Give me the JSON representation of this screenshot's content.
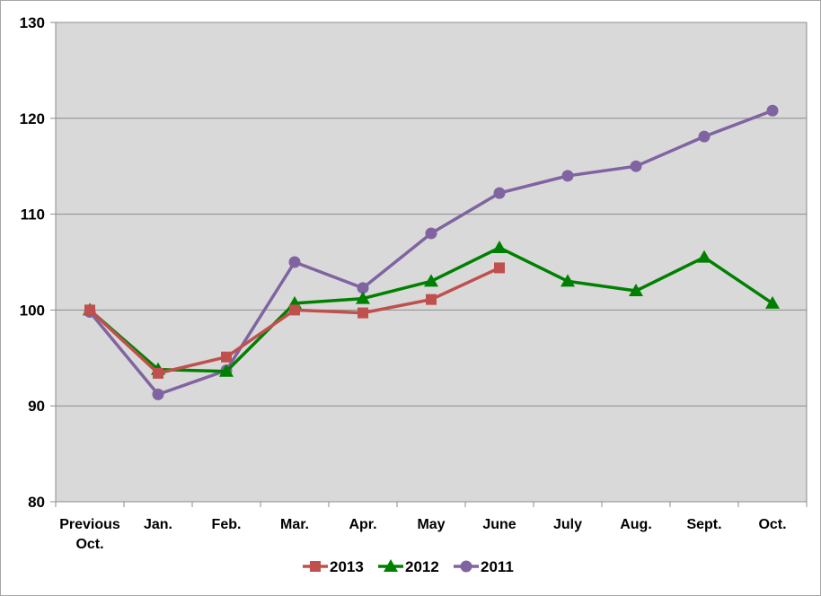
{
  "chart_data": {
    "type": "line",
    "title": "",
    "xlabel": "",
    "ylabel": "",
    "ylim": [
      80,
      130
    ],
    "yticks": [
      80,
      90,
      100,
      110,
      120,
      130
    ],
    "grid": "horizontal",
    "legend_position": "bottom",
    "categories": [
      [
        "Previous",
        "Oct."
      ],
      [
        "Jan."
      ],
      [
        "Feb."
      ],
      [
        "Mar."
      ],
      [
        "Apr."
      ],
      [
        "May"
      ],
      [
        "June"
      ],
      [
        "July"
      ],
      [
        "Aug."
      ],
      [
        "Sept."
      ],
      [
        "Oct."
      ]
    ],
    "series": [
      {
        "name": "2013",
        "color": "#c0504d",
        "marker": "square",
        "values": [
          100,
          93.4,
          95.1,
          100,
          99.7,
          101.1,
          104.4,
          null,
          null,
          null,
          null
        ]
      },
      {
        "name": "2012",
        "color": "#008000",
        "marker": "triangle",
        "values": [
          100,
          93.8,
          93.6,
          100.7,
          101.2,
          103.0,
          106.5,
          103.0,
          102.0,
          105.5,
          100.7
        ]
      },
      {
        "name": "2011",
        "color": "#8064a2",
        "marker": "circle",
        "values": [
          99.8,
          91.2,
          93.7,
          105.0,
          102.3,
          108.0,
          112.2,
          114.0,
          115.0,
          118.1,
          120.8
        ]
      }
    ]
  }
}
